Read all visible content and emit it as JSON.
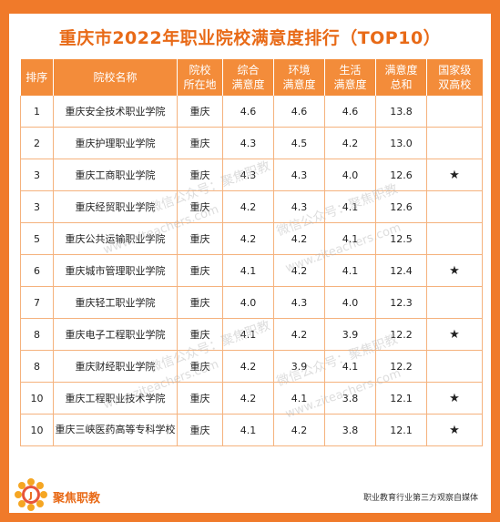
{
  "title": "重庆市2022年职业院校满意度排行（TOP10）",
  "headers": [
    "排序",
    "院校名称",
    "院校\n所在地",
    "综合\n满意度",
    "环境\n满意度",
    "生活\n满意度",
    "满意度\n总和",
    "国家级\n双高校"
  ],
  "rows": [
    {
      "rank": "1",
      "name": "重庆安全技术职业学院",
      "city": "重庆",
      "overall": "4.6",
      "env": "4.6",
      "life": "4.6",
      "total": "13.8",
      "star": ""
    },
    {
      "rank": "2",
      "name": "重庆护理职业学院",
      "city": "重庆",
      "overall": "4.3",
      "env": "4.5",
      "life": "4.2",
      "total": "13.0",
      "star": ""
    },
    {
      "rank": "3",
      "name": "重庆工商职业学院",
      "city": "重庆",
      "overall": "4.3",
      "env": "4.3",
      "life": "4.0",
      "total": "12.6",
      "star": "★"
    },
    {
      "rank": "3",
      "name": "重庆经贸职业学院",
      "city": "重庆",
      "overall": "4.2",
      "env": "4.3",
      "life": "4.1",
      "total": "12.6",
      "star": ""
    },
    {
      "rank": "5",
      "name": "重庆公共运输职业学院",
      "city": "重庆",
      "overall": "4.2",
      "env": "4.2",
      "life": "4.1",
      "total": "12.5",
      "star": ""
    },
    {
      "rank": "6",
      "name": "重庆城市管理职业学院",
      "city": "重庆",
      "overall": "4.1",
      "env": "4.2",
      "life": "4.1",
      "total": "12.4",
      "star": "★"
    },
    {
      "rank": "7",
      "name": "重庆轻工职业学院",
      "city": "重庆",
      "overall": "4.0",
      "env": "4.3",
      "life": "4.0",
      "total": "12.3",
      "star": ""
    },
    {
      "rank": "8",
      "name": "重庆电子工程职业学院",
      "city": "重庆",
      "overall": "4.1",
      "env": "4.2",
      "life": "3.9",
      "total": "12.2",
      "star": "★"
    },
    {
      "rank": "8",
      "name": "重庆财经职业学院",
      "city": "重庆",
      "overall": "4.2",
      "env": "3.9",
      "life": "4.1",
      "total": "12.2",
      "star": ""
    },
    {
      "rank": "10",
      "name": "重庆工程职业技术学院",
      "city": "重庆",
      "overall": "4.2",
      "env": "4.1",
      "life": "3.8",
      "total": "12.1",
      "star": "★"
    },
    {
      "rank": "10",
      "name": "重庆三峡医药高等专科学校",
      "city": "重庆",
      "overall": "4.1",
      "env": "4.2",
      "life": "3.8",
      "total": "12.1",
      "star": "★"
    }
  ],
  "watermark_cn": "微信公众号：聚焦职教",
  "watermark_url": "www.ziteachers.com",
  "footer": {
    "logo_letter": "J",
    "brand": "聚焦职教",
    "tagline": "职业教育行业第三方观察自媒体"
  },
  "colors": {
    "accent": "#f07a2a",
    "header": "#f38c3a",
    "title": "#e86a17"
  }
}
